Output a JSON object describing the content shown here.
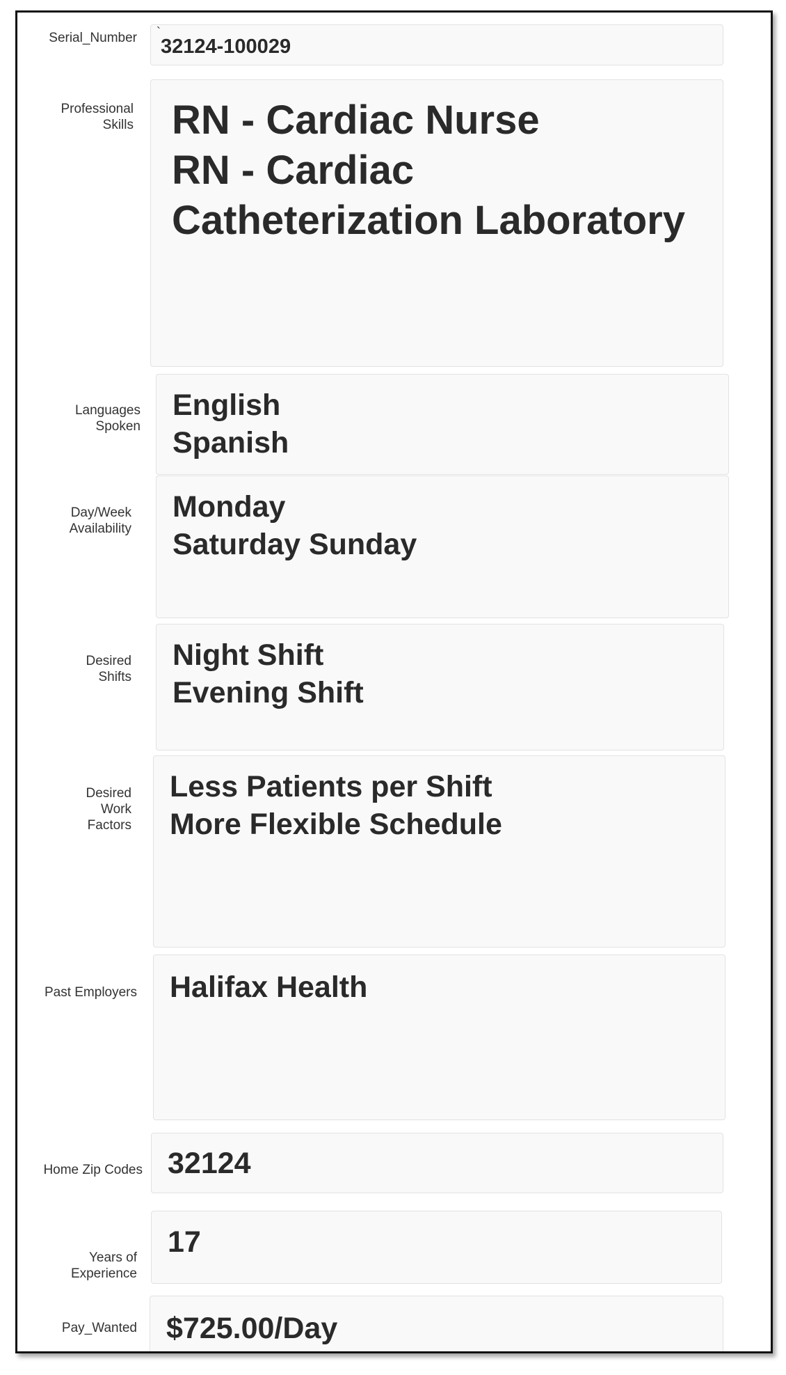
{
  "fields": {
    "serial": {
      "label": "Serial_Number",
      "prefix": "`",
      "value": "32124-100029"
    },
    "skills": {
      "label_lines": [
        "Professional",
        "Skills"
      ],
      "values": [
        "RN - Cardiac Nurse",
        "RN - Cardiac",
        "Catheterization Laboratory"
      ]
    },
    "languages": {
      "label_lines": [
        "Languages",
        "Spoken"
      ],
      "values": [
        "English",
        "Spanish"
      ]
    },
    "availability": {
      "label_lines": [
        "Day/Week",
        "Availability"
      ],
      "values": [
        "Monday",
        "Saturday Sunday"
      ]
    },
    "shifts": {
      "label_lines": [
        "Desired",
        "Shifts"
      ],
      "values": [
        "Night Shift",
        "Evening Shift"
      ]
    },
    "work_factors": {
      "label_lines": [
        "Desired",
        "Work",
        "Factors"
      ],
      "values": [
        "Less Patients per Shift",
        "More Flexible Schedule"
      ]
    },
    "employers": {
      "label": "Past Employers",
      "values": [
        "Halifax Health"
      ]
    },
    "zip": {
      "label": "Home Zip Codes",
      "value": "32124"
    },
    "experience": {
      "label_lines": [
        "Years of",
        "Experience"
      ],
      "value": "17"
    },
    "pay": {
      "label": "Pay_Wanted",
      "value": "$725.00/Day"
    }
  }
}
